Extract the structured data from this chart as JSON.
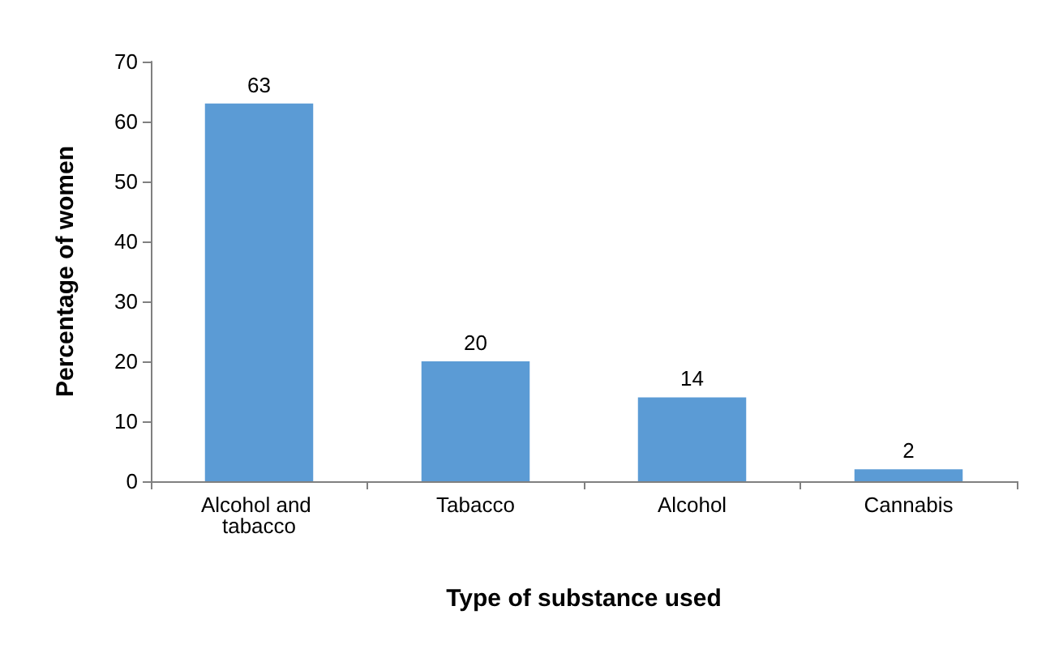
{
  "chart_data": {
    "type": "bar",
    "xlabel": "Type of substance used",
    "ylabel": "Percentage of women",
    "categories": [
      "Alcohol and tabacco",
      "Tabacco",
      "Alcohol",
      "Cannabis"
    ],
    "values": [
      63,
      20,
      14,
      2
    ],
    "color": "#5b9bd5",
    "ylim": [
      0,
      70
    ],
    "yticks": [
      0,
      10,
      20,
      30,
      40,
      50,
      60,
      70
    ],
    "grid": false,
    "data_labels": true
  }
}
